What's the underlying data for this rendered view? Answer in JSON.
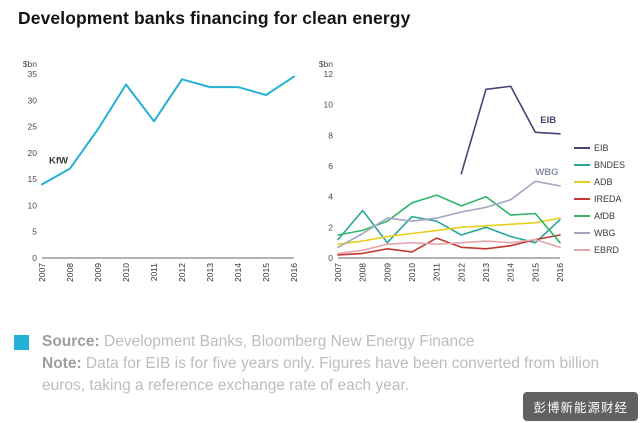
{
  "title": "Development banks financing for clean energy",
  "colors": {
    "accent_cyan": "#25b0d5",
    "eib_navy": "#454573",
    "bndes_teal": "#2aa79b",
    "adb_yellow": "#e9cf1e",
    "ireda_red": "#c0392f",
    "afdb_green": "#33b46a",
    "wbg_gray": "#a3a6c2",
    "ebrd_pink": "#e4a7b0"
  },
  "footer": {
    "source_label": "Source:",
    "source_text": " Development Banks, Bloomberg New Energy Finance",
    "note_label": "Note:",
    "note_text": " Data for EIB is for five years only. Figures have been converted from billion euros, taking a reference exchange rate of each year."
  },
  "watermark": {
    "text": "彭博新能源财经"
  },
  "chart_data": [
    {
      "type": "line",
      "title": "",
      "ylabel": "$bn",
      "xlabel": "",
      "categories": [
        "2007",
        "2008",
        "2009",
        "2010",
        "2011",
        "2012",
        "2013",
        "2014",
        "2015",
        "2016"
      ],
      "series": [
        {
          "name": "KfW",
          "color": "#25b0d5",
          "values": [
            14,
            17,
            24.5,
            33,
            26,
            34,
            32.5,
            32.5,
            31,
            34.5
          ]
        }
      ],
      "ylim": [
        0,
        35
      ],
      "yticks": [
        0,
        5,
        10,
        15,
        20,
        25,
        30,
        35
      ],
      "grid": false,
      "legend": false,
      "annotations": [
        {
          "text": "KfW",
          "x": 0.25,
          "y": 18,
          "color": "#3a3a3a"
        }
      ]
    },
    {
      "type": "line",
      "title": "",
      "ylabel": "$bn",
      "xlabel": "",
      "categories": [
        "2007",
        "2008",
        "2009",
        "2010",
        "2011",
        "2012",
        "2013",
        "2014",
        "2015",
        "2016"
      ],
      "series": [
        {
          "name": "EIB",
          "color": "#454573",
          "values": [
            null,
            null,
            null,
            null,
            null,
            5.5,
            11,
            11.2,
            8.2,
            8.1
          ]
        },
        {
          "name": "BNDES",
          "color": "#2aa79b",
          "values": [
            1.2,
            3.1,
            1.0,
            2.7,
            2.4,
            1.5,
            2.0,
            1.4,
            1.0,
            2.5
          ]
        },
        {
          "name": "ADB",
          "color": "#e9cf1e",
          "values": [
            0.9,
            1.1,
            1.4,
            1.6,
            1.8,
            2.0,
            2.1,
            2.2,
            2.3,
            2.6
          ]
        },
        {
          "name": "IREDA",
          "color": "#c0392f",
          "values": [
            0.2,
            0.3,
            0.6,
            0.4,
            1.3,
            0.7,
            0.6,
            0.8,
            1.2,
            1.5
          ]
        },
        {
          "name": "AfDB",
          "color": "#33b46a",
          "values": [
            1.5,
            1.8,
            2.4,
            3.6,
            4.1,
            3.4,
            4.0,
            2.8,
            2.9,
            1.0
          ]
        },
        {
          "name": "WBG",
          "color": "#a3a6c2",
          "values": [
            0.7,
            1.6,
            2.6,
            2.4,
            2.6,
            3.0,
            3.3,
            3.8,
            5.0,
            4.7
          ]
        },
        {
          "name": "EBRD",
          "color": "#e4a7b0",
          "values": [
            0.3,
            0.5,
            0.9,
            1.0,
            0.9,
            1.0,
            1.1,
            1.0,
            1.2,
            0.7
          ]
        }
      ],
      "ylim": [
        0,
        12
      ],
      "yticks": [
        0,
        2,
        4,
        6,
        8,
        10,
        12
      ],
      "grid": false,
      "legend": true,
      "legend_position": "right",
      "annotations": [
        {
          "text": "EIB",
          "x": 8.2,
          "y": 8.8,
          "color": "#454573"
        },
        {
          "text": "WBG",
          "x": 8.0,
          "y": 5.4,
          "color": "#8a8da8"
        }
      ]
    }
  ]
}
